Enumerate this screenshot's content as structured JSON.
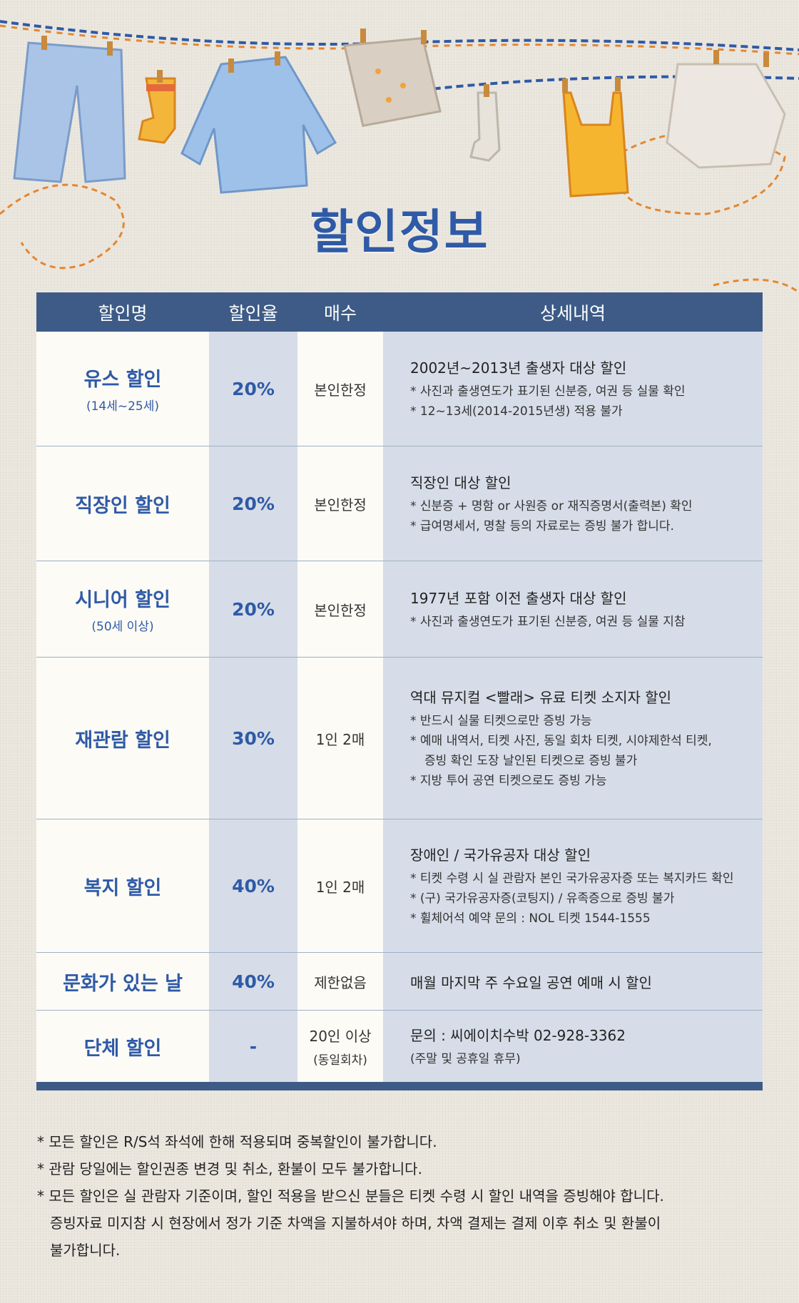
{
  "title": "할인정보",
  "colors": {
    "title": "#2f5aa6",
    "header_bg": "#3d5b86",
    "col_shade": "#d6dde8",
    "col_light": "#fdfbf6"
  },
  "table": {
    "headers": {
      "name": "할인명",
      "rate": "할인율",
      "qty": "매수",
      "detail": "상세내역"
    },
    "rows": [
      {
        "name": "유스 할인",
        "sub": "(14세~25세)",
        "rate": "20%",
        "qty": "본인한정",
        "qty_sub": "",
        "detail_head": "2002년~2013년 출생자 대상 할인",
        "lines": [
          "*  사진과 출생연도가 표기된 신분증, 여권 등 실물 확인",
          "*  12~13세(2014-2015년생) 적용 불가"
        ]
      },
      {
        "name": "직장인 할인",
        "sub": "",
        "rate": "20%",
        "qty": "본인한정",
        "qty_sub": "",
        "detail_head": "직장인 대상 할인",
        "lines": [
          "*  신분증 + 명함 or 사원증 or 재직증명서(출력본) 확인",
          "*  급여명세서, 명찰 등의 자료로는 증빙 불가 합니다."
        ]
      },
      {
        "name": "시니어 할인",
        "sub": "(50세 이상)",
        "rate": "20%",
        "qty": "본인한정",
        "qty_sub": "",
        "detail_head": "1977년 포함 이전 출생자 대상 할인",
        "lines": [
          "* 사진과 출생연도가 표기된 신분증, 여권 등 실물 지참"
        ]
      },
      {
        "name": "재관람 할인",
        "sub": "",
        "rate": "30%",
        "qty": "1인 2매",
        "qty_sub": "",
        "detail_head": "역대 뮤지컬 <빨래> 유료 티켓 소지자 할인",
        "lines": [
          "*  반드시 실물 티켓으로만 증빙 가능",
          "*  예매 내역서, 티켓 사진, 동일 회차 티켓, 시야제한석 티켓,",
          "증빙 확인 도장 날인된 티켓으로 증빙 불가",
          "*  지방 투어 공연 티켓으로도 증빙 가능"
        ]
      },
      {
        "name": "복지 할인",
        "sub": "",
        "rate": "40%",
        "qty": "1인 2매",
        "qty_sub": "",
        "detail_head": "장애인 / 국가유공자 대상 할인",
        "lines": [
          "* 티켓 수령 시 실 관람자 본인 국가유공자증 또는 복지카드 확인",
          "* (구) 국가유공자증(코팅지) / 유족증으로 증빙 불가",
          "* 휠체어석 예약 문의 : NOL 티켓 1544-1555"
        ]
      },
      {
        "name": "문화가 있는 날",
        "sub": "",
        "rate": "40%",
        "qty": "제한없음",
        "qty_sub": "",
        "detail_head": "매월 마지막 주 수요일 공연 예매 시 할인",
        "lines": []
      },
      {
        "name": "단체 할인",
        "sub": "",
        "rate": "-",
        "qty": "20인 이상",
        "qty_sub": "(동일회차)",
        "detail_head": "문의 : 씨에이치수박 02-928-3362",
        "lines": [
          "(주말 및 공휴일 휴무)"
        ]
      }
    ]
  },
  "notes": [
    "* 모든 할인은 R/S석 좌석에 한해 적용되며 중복할인이 불가합니다.",
    "*  관람 당일에는 할인권종 변경 및 취소, 환불이 모두 불가합니다.",
    "* 모든 할인은 실 관람자 기준이며, 할인 적용을 받으신 분들은 티켓 수령 시 할인 내역을 증빙해야 합니다.",
    "증빙자료 미지참 시 현장에서 정가 기준 차액을 지불하셔야 하며, 차액 결제는 결제 이후 취소 및 환불이",
    "불가합니다."
  ]
}
